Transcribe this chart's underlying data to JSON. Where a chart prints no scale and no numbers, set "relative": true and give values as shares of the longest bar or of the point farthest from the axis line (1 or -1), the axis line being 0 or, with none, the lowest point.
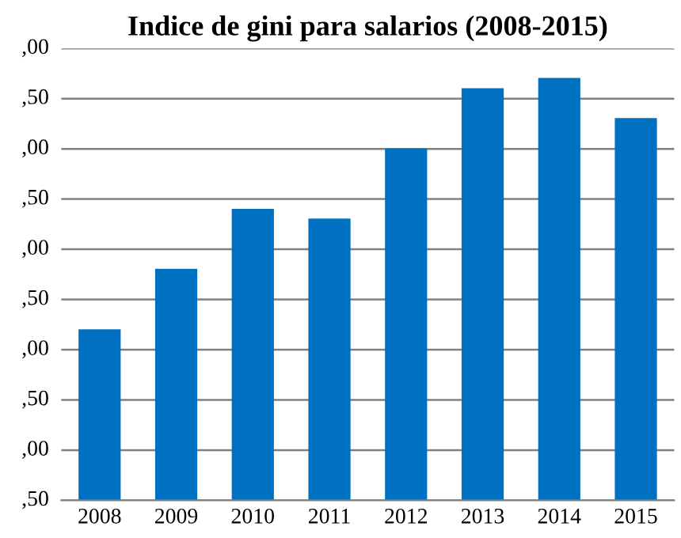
{
  "chart_data": {
    "type": "bar",
    "title": "Indice de gini para salarios (2008-2015)",
    "categories": [
      "2008",
      "2009",
      "2010",
      "2011",
      "2012",
      "2013",
      "2014",
      "2015"
    ],
    "values": [
      0.405,
      0.548,
      0.69,
      0.667,
      0.833,
      0.976,
      1,
      0.905
    ],
    "relative": true,
    "color": "#0070c0",
    "annotations": [
      ",00",
      ",50",
      ",00",
      ",50",
      ",00",
      ",50",
      ",00",
      ",50",
      ",00",
      ",50"
    ],
    "grid": "y",
    "legend": false
  }
}
